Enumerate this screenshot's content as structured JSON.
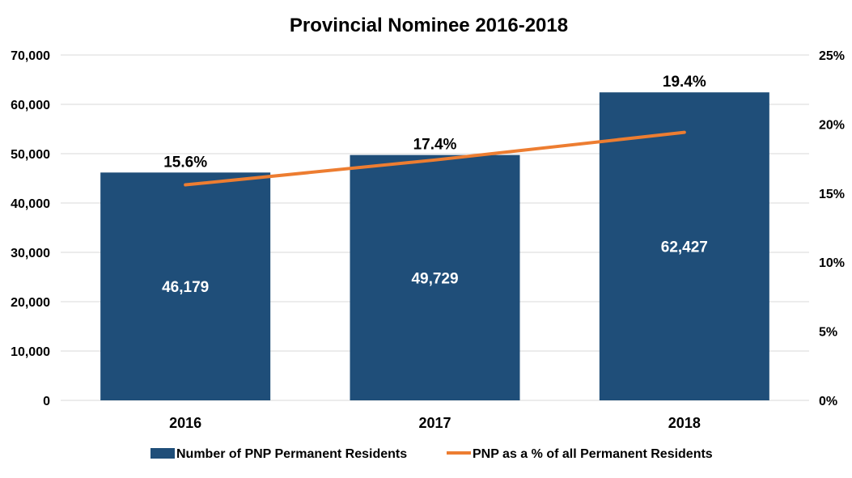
{
  "chart_data": {
    "type": "bar",
    "title": "Provincial Nominee 2016-2018",
    "categories": [
      "2016",
      "2017",
      "2018"
    ],
    "series": [
      {
        "name": "Number of PNP Permanent Residents",
        "type": "bar",
        "axis": "left",
        "color": "#1f4e79",
        "values": [
          46179,
          49729,
          62427
        ],
        "labels": [
          "46,179",
          "49,729",
          "62,427"
        ]
      },
      {
        "name": "PNP as a % of all Permanent Residents",
        "type": "line",
        "axis": "right",
        "color": "#ed7d31",
        "values": [
          15.6,
          17.4,
          19.4
        ],
        "labels": [
          "15.6%",
          "17.4%",
          "19.4%"
        ]
      }
    ],
    "y_left": {
      "ylim": [
        0,
        70000
      ],
      "ticks": [
        0,
        10000,
        20000,
        30000,
        40000,
        50000,
        60000,
        70000
      ],
      "tick_labels": [
        "0",
        "10,000",
        "20,000",
        "30,000",
        "40,000",
        "50,000",
        "60,000",
        "70,000"
      ]
    },
    "y_right": {
      "ylim": [
        0,
        25
      ],
      "ticks": [
        0,
        5,
        10,
        15,
        20,
        25
      ],
      "tick_labels": [
        "0%",
        "5%",
        "10%",
        "15%",
        "20%",
        "25%"
      ]
    },
    "grid": true,
    "legend_position": "bottom"
  }
}
